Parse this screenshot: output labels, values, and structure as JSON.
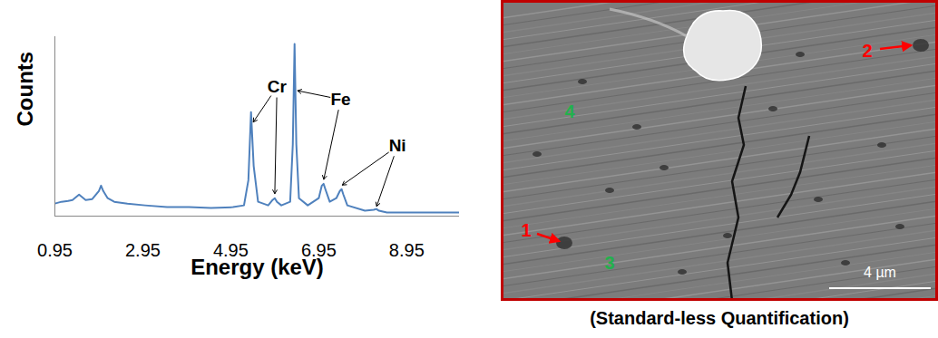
{
  "chart_data": {
    "type": "line",
    "x_label": "Energy (keV)",
    "y_label": "Counts",
    "x": [
      0.95,
      1.1,
      1.25,
      1.35,
      1.45,
      1.5,
      1.55,
      1.65,
      1.8,
      1.95,
      2.0,
      2.05,
      2.15,
      2.3,
      2.6,
      3.0,
      3.5,
      4.0,
      4.5,
      5.0,
      5.25,
      5.35,
      5.41,
      5.47,
      5.57,
      5.8,
      5.9,
      5.95,
      6.0,
      6.1,
      6.3,
      6.36,
      6.4,
      6.44,
      6.5,
      6.7,
      6.95,
      7.02,
      7.06,
      7.1,
      7.2,
      7.35,
      7.43,
      7.47,
      7.51,
      7.6,
      8.0,
      8.2,
      8.26,
      8.32,
      8.5,
      8.95,
      9.5,
      10.15
    ],
    "values": [
      7,
      8,
      8.5,
      9,
      11,
      12,
      11,
      9,
      9.5,
      14,
      17,
      14,
      10,
      8,
      7,
      6,
      5,
      5,
      4.5,
      5,
      6,
      20,
      58,
      28,
      8,
      6,
      9,
      10,
      8,
      6,
      8,
      40,
      96,
      40,
      10,
      6,
      10,
      17,
      18,
      15,
      8,
      10,
      14,
      15,
      12,
      6,
      3,
      3.5,
      4,
      3,
      2,
      2,
      2,
      2
    ],
    "color": "#4f81bd",
    "xlim": [
      0.95,
      10.15
    ],
    "xticks": [
      0.95,
      2.95,
      4.95,
      6.95,
      8.95
    ],
    "ylim": [
      0,
      100
    ],
    "yticks": [],
    "tick_labels": "x",
    "grid": false,
    "annotations": [
      {
        "text": "Cr",
        "x": 6.0,
        "y": 72,
        "targets": [
          {
            "x": 5.45,
            "y": 52
          },
          {
            "x": 5.95,
            "y": 12
          }
        ]
      },
      {
        "text": "Fe",
        "x": 7.45,
        "y": 65,
        "targets": [
          {
            "x": 6.45,
            "y": 70
          },
          {
            "x": 7.06,
            "y": 20
          }
        ]
      },
      {
        "text": "Ni",
        "x": 8.74,
        "y": 39,
        "targets": [
          {
            "x": 7.47,
            "y": 17
          },
          {
            "x": 8.26,
            "y": 5
          }
        ]
      }
    ]
  },
  "image_panel": {
    "caption": "(Standard-less Quantification)",
    "border_color": "#c00000",
    "scale_bar": "4 µm",
    "markers": [
      {
        "label": "1",
        "color": "#ff0000",
        "arrow": true
      },
      {
        "label": "2",
        "color": "#ff0000",
        "arrow": true
      },
      {
        "label": "3",
        "color": "#22b14c",
        "arrow": false
      },
      {
        "label": "4",
        "color": "#22b14c",
        "arrow": false
      }
    ]
  }
}
